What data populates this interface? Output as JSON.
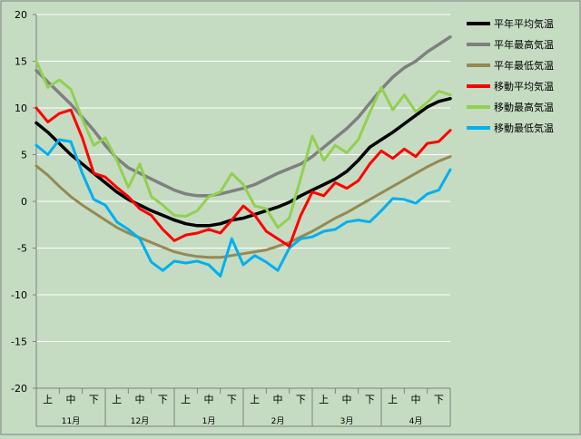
{
  "chart_data": {
    "type": "line",
    "title": "",
    "xlabel": "",
    "ylabel": "",
    "ylim": [
      -20,
      20
    ],
    "yticks": [
      20,
      15,
      10,
      5,
      0,
      -5,
      -10,
      -15,
      -20
    ],
    "grid": true,
    "legend_position": "right",
    "months": [
      "11月",
      "12月",
      "1月",
      "2月",
      "3月",
      "4月"
    ],
    "periods": [
      "上",
      "中",
      "下"
    ],
    "x": [
      0,
      0.5,
      1,
      1.5,
      2,
      2.5,
      3,
      3.5,
      4,
      4.5,
      5,
      5.5,
      6,
      6.5,
      7,
      7.5,
      8,
      8.5,
      9,
      9.5,
      10,
      10.5,
      11,
      11.5,
      12,
      12.5,
      13,
      13.5,
      14,
      14.5,
      15,
      15.5,
      16,
      16.5,
      17,
      17.5,
      18
    ],
    "series": [
      {
        "name": "平年平均気温",
        "color": "#000000",
        "values": [
          8.4,
          7.4,
          6.2,
          5.0,
          4.0,
          3.0,
          2.0,
          1.0,
          0.2,
          -0.4,
          -1.0,
          -1.5,
          -2.0,
          -2.4,
          -2.6,
          -2.6,
          -2.4,
          -2.0,
          -1.8,
          -1.4,
          -1.0,
          -0.6,
          -0.1,
          0.6,
          1.2,
          1.8,
          2.4,
          3.2,
          4.4,
          5.8,
          6.6,
          7.4,
          8.3,
          9.2,
          10.1,
          10.7,
          11.0
        ]
      },
      {
        "name": "平年最高気温",
        "color": "#808080",
        "values": [
          14.0,
          12.8,
          11.6,
          10.4,
          9.0,
          7.6,
          6.0,
          4.6,
          3.6,
          3.0,
          2.4,
          1.8,
          1.2,
          0.8,
          0.6,
          0.6,
          0.8,
          1.1,
          1.4,
          1.8,
          2.4,
          3.0,
          3.5,
          4.0,
          4.8,
          5.8,
          6.8,
          7.8,
          9.0,
          10.5,
          12.0,
          13.3,
          14.3,
          15.0,
          16.0,
          16.8,
          17.6
        ]
      },
      {
        "name": "平年最低気温",
        "color": "#948a54",
        "values": [
          3.8,
          2.8,
          1.6,
          0.5,
          -0.4,
          -1.2,
          -2.0,
          -2.8,
          -3.4,
          -3.9,
          -4.4,
          -4.9,
          -5.4,
          -5.7,
          -5.9,
          -6.0,
          -6.0,
          -5.8,
          -5.6,
          -5.4,
          -5.2,
          -4.8,
          -4.4,
          -3.8,
          -3.2,
          -2.5,
          -1.8,
          -1.2,
          -0.5,
          0.2,
          0.9,
          1.6,
          2.3,
          3.0,
          3.7,
          4.3,
          4.8
        ]
      },
      {
        "name": "移動平均気温",
        "color": "#ff0000",
        "values": [
          10.0,
          8.5,
          9.4,
          9.8,
          6.8,
          3.0,
          2.6,
          1.5,
          0.5,
          -0.8,
          -1.5,
          -3.0,
          -4.2,
          -3.6,
          -3.4,
          -3.0,
          -3.4,
          -2.0,
          -0.5,
          -1.5,
          -3.2,
          -4.0,
          -4.8,
          -1.5,
          1.0,
          0.6,
          2.0,
          1.4,
          2.2,
          4.0,
          5.4,
          4.6,
          5.6,
          4.8,
          6.2,
          6.4,
          7.6
        ]
      },
      {
        "name": "移動最高気温",
        "color": "#92d050",
        "values": [
          15.0,
          12.2,
          13.0,
          12.0,
          8.8,
          6.0,
          6.8,
          4.4,
          1.5,
          4.0,
          0.5,
          -0.4,
          -1.5,
          -1.6,
          -1.0,
          0.5,
          1.0,
          3.0,
          1.8,
          -0.5,
          -0.8,
          -2.8,
          -1.8,
          2.5,
          7.0,
          4.4,
          6.0,
          5.2,
          6.6,
          9.5,
          12.2,
          9.8,
          11.4,
          9.6,
          10.6,
          11.8,
          11.4
        ]
      },
      {
        "name": "移動最低気温",
        "color": "#00b0f0",
        "values": [
          6.0,
          5.0,
          6.6,
          6.4,
          3.0,
          0.2,
          -0.4,
          -2.2,
          -3.0,
          -4.0,
          -6.5,
          -7.4,
          -6.4,
          -6.6,
          -6.4,
          -6.8,
          -8.0,
          -4.0,
          -6.8,
          -5.8,
          -6.5,
          -7.4,
          -5.0,
          -4.0,
          -3.8,
          -3.2,
          -3.0,
          -2.2,
          -2.0,
          -2.2,
          -1.0,
          0.3,
          0.2,
          -0.2,
          0.8,
          1.2,
          3.4
        ]
      }
    ]
  }
}
